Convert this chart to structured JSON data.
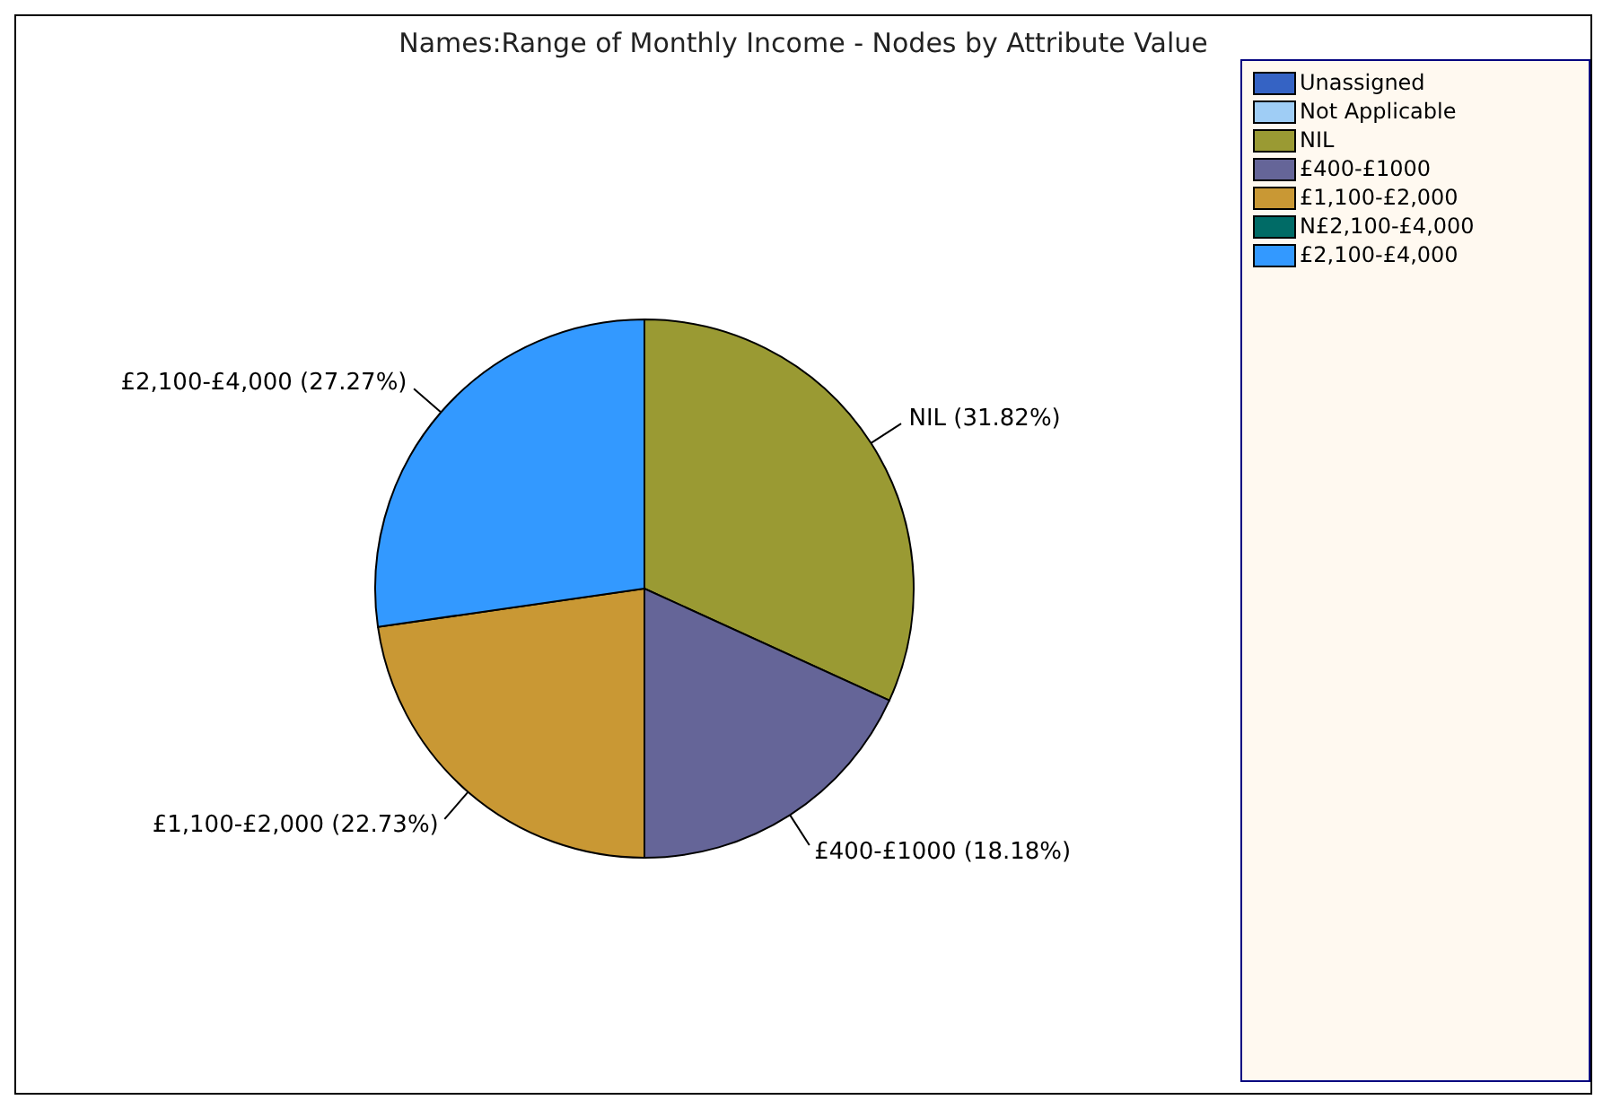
{
  "chart_data": {
    "type": "pie",
    "title": "Names:Range of Monthly Income - Nodes by Attribute Value",
    "categories": [
      "Unassigned",
      "Not Applicable",
      "NIL",
      "£400-£1000",
      "£1,100-£2,000",
      "N£2,100-£4,000",
      "£2,100-£4,000"
    ],
    "values": [
      0,
      0,
      31.82,
      18.18,
      22.73,
      0,
      27.27
    ],
    "colors": [
      "#3563c4",
      "#9fcdf5",
      "#9a9a33",
      "#656598",
      "#c99834",
      "#006b66",
      "#3399ff"
    ],
    "value_labels": [
      null,
      null,
      "NIL (31.82%)",
      "£400-£1000 (18.18%)",
      "£1,100-£2,000 (22.73%)",
      null,
      "£2,100-£4,000 (27.27%)"
    ],
    "legend": "top right"
  }
}
